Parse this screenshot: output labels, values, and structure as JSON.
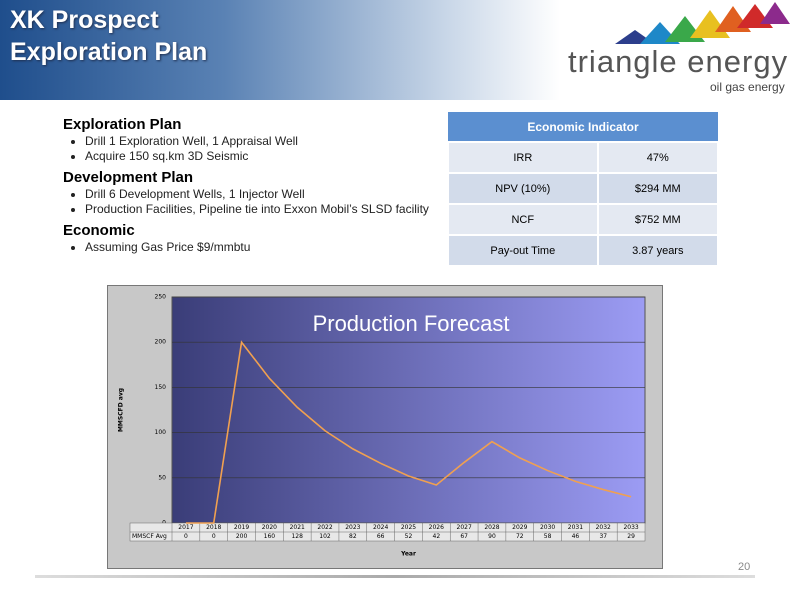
{
  "header": {
    "title_lines": [
      "XK Prospect",
      "Exploration Plan"
    ]
  },
  "logo": {
    "name": "triangle energy",
    "tagline": "oil gas energy"
  },
  "sections": [
    {
      "heading": "Exploration Plan",
      "bullets": [
        "Drill 1 Exploration Well, 1 Appraisal Well",
        "Acquire 150 sq.km 3D Seismic"
      ]
    },
    {
      "heading": "Development Plan",
      "bullets": [
        "Drill 6 Development Wells, 1 Injector Well",
        "Production Facilities, Pipeline tie into Exxon Mobil’s SLSD facility"
      ]
    },
    {
      "heading": "Economic",
      "bullets": [
        "Assuming Gas Price $9/mmbtu"
      ]
    }
  ],
  "table": {
    "header": "Economic Indicator",
    "rows": [
      [
        "IRR",
        "47%"
      ],
      [
        "NPV (10%)",
        "$294 MM"
      ],
      [
        "NCF",
        "$752 MM"
      ],
      [
        "Pay-out Time",
        "3.87 years"
      ]
    ]
  },
  "chart_data": {
    "type": "line",
    "title": "Production Forecast",
    "x_label": "Year",
    "y_label": "MMSCFD avg",
    "categories": [
      "2017",
      "2018",
      "2019",
      "2020",
      "2021",
      "2022",
      "2023",
      "2024",
      "2025",
      "2026",
      "2027",
      "2028",
      "2029",
      "2030",
      "2031",
      "2032",
      "2033"
    ],
    "series": [
      {
        "name": "MMSCF Avg",
        "color": "#f0a050",
        "values": [
          0,
          0,
          200,
          160,
          128,
          102,
          82,
          66,
          52,
          42,
          67,
          90,
          72,
          58,
          46,
          37,
          29
        ]
      }
    ],
    "ylim": [
      0,
      250
    ],
    "yticks": [
      0,
      50,
      100,
      150,
      200,
      250
    ],
    "grid": true
  },
  "page_number": "20"
}
